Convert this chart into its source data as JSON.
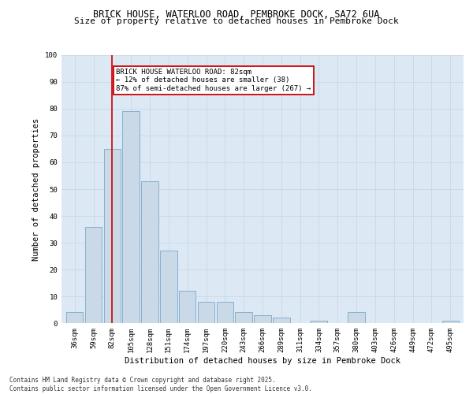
{
  "title1": "BRICK HOUSE, WATERLOO ROAD, PEMBROKE DOCK, SA72 6UA",
  "title2": "Size of property relative to detached houses in Pembroke Dock",
  "xlabel": "Distribution of detached houses by size in Pembroke Dock",
  "ylabel": "Number of detached properties",
  "categories": [
    "36sqm",
    "59sqm",
    "82sqm",
    "105sqm",
    "128sqm",
    "151sqm",
    "174sqm",
    "197sqm",
    "220sqm",
    "243sqm",
    "266sqm",
    "289sqm",
    "311sqm",
    "334sqm",
    "357sqm",
    "380sqm",
    "403sqm",
    "426sqm",
    "449sqm",
    "472sqm",
    "495sqm"
  ],
  "values": [
    4,
    36,
    65,
    79,
    53,
    27,
    12,
    8,
    8,
    4,
    3,
    2,
    0,
    1,
    0,
    4,
    0,
    0,
    0,
    0,
    1
  ],
  "bar_color": "#c9d9e8",
  "bar_edge_color": "#7aaac8",
  "red_line_index": 2,
  "annotation_text": "BRICK HOUSE WATERLOO ROAD: 82sqm\n← 12% of detached houses are smaller (38)\n87% of semi-detached houses are larger (267) →",
  "annotation_box_color": "#ffffff",
  "annotation_box_edge": "#cc0000",
  "ylim": [
    0,
    100
  ],
  "yticks": [
    0,
    10,
    20,
    30,
    40,
    50,
    60,
    70,
    80,
    90,
    100
  ],
  "grid_color": "#c8d8e8",
  "bg_color": "#dce9f5",
  "footer": "Contains HM Land Registry data © Crown copyright and database right 2025.\nContains public sector information licensed under the Open Government Licence v3.0.",
  "title_fontsize": 8.5,
  "subtitle_fontsize": 8,
  "axis_label_fontsize": 7.5,
  "tick_fontsize": 6.5,
  "footer_fontsize": 5.5,
  "annotation_fontsize": 6.5
}
